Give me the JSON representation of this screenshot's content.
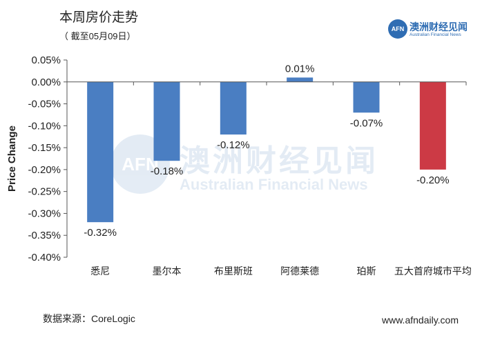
{
  "header": {
    "title": "本周房价走势",
    "subtitle": "（ 截至05月09日）"
  },
  "logo": {
    "mark": "AFN",
    "name_cn": "澳洲财经见闻",
    "name_en": "Australian Financial News"
  },
  "watermark": {
    "mark": "AFN",
    "name_cn": "澳洲财经见闻",
    "name_en": "Australian Financial News"
  },
  "footer": {
    "source": "数据来源：CoreLogic",
    "website": "www.afndaily.com"
  },
  "colors": {
    "bar": "#4a7ec2",
    "highlight": "#cc3a45",
    "axis": "#555555"
  },
  "chart_data": {
    "type": "bar",
    "title": "本周房价走势",
    "ylabel": "Price Change",
    "xlabel": "",
    "categories": [
      "悉尼",
      "墨尔本",
      "布里斯班",
      "阿德莱德",
      "珀斯",
      "五大首府城市平均"
    ],
    "values": [
      -0.32,
      -0.18,
      -0.12,
      0.01,
      -0.07,
      -0.2
    ],
    "data_labels": [
      "-0.32%",
      "-0.18%",
      "-0.12%",
      "0.01%",
      "-0.07%",
      "-0.20%"
    ],
    "highlight_index": 5,
    "ylim": [
      -0.4,
      0.05
    ],
    "yticks": [
      0.05,
      0.0,
      -0.05,
      -0.1,
      -0.15,
      -0.2,
      -0.25,
      -0.3,
      -0.35,
      -0.4
    ],
    "ytick_labels": [
      "0.05%",
      "0.00%",
      "-0.05%",
      "-0.10%",
      "-0.15%",
      "-0.20%",
      "-0.25%",
      "-0.30%",
      "-0.35%",
      "-0.40%"
    ],
    "grid": false,
    "legend": "none"
  }
}
